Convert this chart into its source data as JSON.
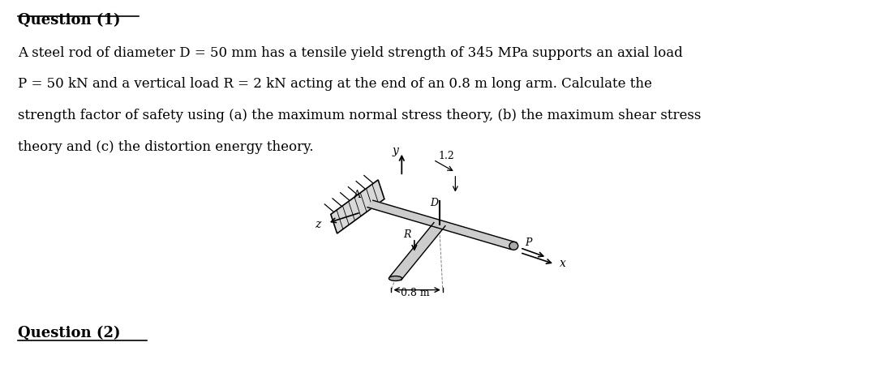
{
  "title": "Question (1)",
  "q2_title": "Question (2)",
  "body_line1": "A steel rod of diameter D = 50 mm has a tensile yield strength of 345 MPa supports an axial load",
  "body_line2": "P = 50 kN and a vertical load R = 2 kN acting at the end of an 0.8 m long arm. Calculate the",
  "body_line3": "strength factor of safety using (a) the maximum normal stress theory, (b) the maximum shear stress",
  "body_line4": "theory and (c) the distortion energy theory.",
  "bg_color": "#ffffff",
  "text_color": "#000000",
  "font_size_title": 13,
  "font_size_body": 12
}
